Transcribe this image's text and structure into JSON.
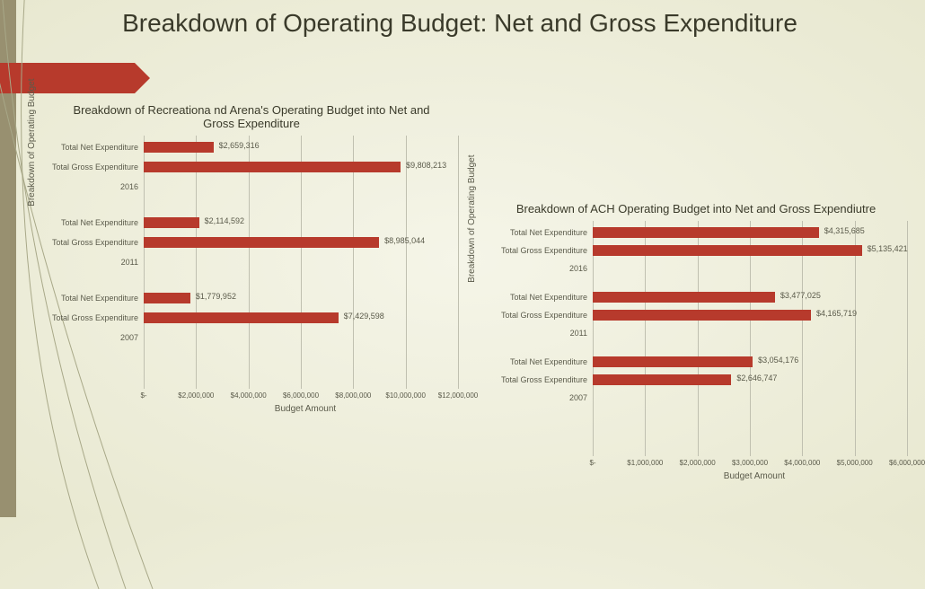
{
  "title": "Breakdown of Operating Budget: Net and Gross Expenditure",
  "accent_color": "#b73a2c",
  "sidebar_color": "#989070",
  "chart_left": {
    "type": "bar",
    "title": "Breakdown of Recreationa nd Arena's Operating Budget into Net and Gross Expenditure",
    "ylabel": "Breakdown of Operating Budget",
    "xlabel": "Budget Amount",
    "xmax": 12000000,
    "xtick_step": 2000000,
    "xtick_labels": [
      "$-",
      "$2,000,000",
      "$4,000,000",
      "$6,000,000",
      "$8,000,000",
      "$10,000,000",
      "$12,000,000"
    ],
    "bar_color": "#b73a2c",
    "label_fontsize": 9,
    "groups": [
      {
        "year": "2016",
        "rows": [
          {
            "label": "Total Net Expenditure",
            "value": 2659316,
            "value_label": "$2,659,316"
          },
          {
            "label": "Total Gross Expenditure",
            "value": 9808213,
            "value_label": "$9,808,213"
          }
        ]
      },
      {
        "year": "2011",
        "rows": [
          {
            "label": "Total Net Expenditure",
            "value": 2114592,
            "value_label": "$2,114,592"
          },
          {
            "label": "Total Gross Expenditure",
            "value": 8985044,
            "value_label": "$8,985,044"
          }
        ]
      },
      {
        "year": "2007",
        "rows": [
          {
            "label": "Total Net Expenditure",
            "value": 1779952,
            "value_label": "$1,779,952"
          },
          {
            "label": "Total Gross Expenditure",
            "value": 7429598,
            "value_label": "$7,429,598"
          }
        ]
      }
    ]
  },
  "chart_right": {
    "type": "bar",
    "title": "Breakdown of ACH Operating Budget into Net and Gross Expendiutre",
    "ylabel": "Breakdown of Operating Budget",
    "xlabel": "Budget Amount",
    "xmax": 6000000,
    "xtick_step": 1000000,
    "xtick_labels": [
      "$-",
      "$1,000,000",
      "$2,000,000",
      "$3,000,000",
      "$4,000,000",
      "$5,000,000",
      "$6,000,000"
    ],
    "bar_color": "#b73a2c",
    "label_fontsize": 9,
    "groups": [
      {
        "year": "2016",
        "rows": [
          {
            "label": "Total Net Expenditure",
            "value": 4315685,
            "value_label": "$4,315,685"
          },
          {
            "label": "Total Gross Expenditure",
            "value": 5135421,
            "value_label": "$5,135,421"
          }
        ]
      },
      {
        "year": "2011",
        "rows": [
          {
            "label": "Total Net Expenditure",
            "value": 3477025,
            "value_label": "$3,477,025"
          },
          {
            "label": "Total Gross Expenditure",
            "value": 4165719,
            "value_label": "$4,165,719"
          }
        ]
      },
      {
        "year": "2007",
        "rows": [
          {
            "label": "Total Net Expenditure",
            "value": 3054176,
            "value_label": "$3,054,176"
          },
          {
            "label": "Total Gross Expenditure",
            "value": 2646747,
            "value_label": "$2,646,747"
          }
        ]
      }
    ]
  }
}
